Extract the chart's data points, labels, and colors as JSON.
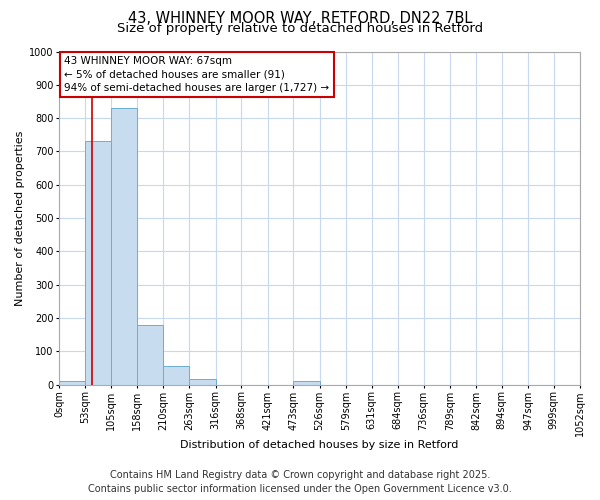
{
  "title_line1": "43, WHINNEY MOOR WAY, RETFORD, DN22 7BL",
  "title_line2": "Size of property relative to detached houses in Retford",
  "xlabel": "Distribution of detached houses by size in Retford",
  "ylabel": "Number of detached properties",
  "bin_edges": [
    0,
    53,
    105,
    158,
    210,
    263,
    316,
    368,
    421,
    473,
    526,
    579,
    631,
    684,
    736,
    789,
    842,
    894,
    947,
    999,
    1052
  ],
  "bin_labels": [
    "0sqm",
    "53sqm",
    "105sqm",
    "158sqm",
    "210sqm",
    "263sqm",
    "316sqm",
    "368sqm",
    "421sqm",
    "473sqm",
    "526sqm",
    "579sqm",
    "631sqm",
    "684sqm",
    "736sqm",
    "789sqm",
    "842sqm",
    "894sqm",
    "947sqm",
    "999sqm",
    "1052sqm"
  ],
  "counts": [
    10,
    730,
    830,
    180,
    55,
    18,
    0,
    0,
    0,
    10,
    0,
    0,
    0,
    0,
    0,
    0,
    0,
    0,
    0,
    0
  ],
  "bar_color": "#c8dcf0",
  "bar_edge_color": "#6baed6",
  "grid_color": "#c8d8f0",
  "background_color": "#ffffff",
  "plot_bg_color": "#ffffff",
  "property_size": 67,
  "red_line_color": "#cc0000",
  "annotation_line1": "43 WHINNEY MOOR WAY: 67sqm",
  "annotation_line2": "← 5% of detached houses are smaller (91)",
  "annotation_line3": "94% of semi-detached houses are larger (1,727) →",
  "annotation_box_color": "#ffffff",
  "annotation_border_color": "#cc0000",
  "ylim": [
    0,
    1000
  ],
  "yticks": [
    0,
    100,
    200,
    300,
    400,
    500,
    600,
    700,
    800,
    900,
    1000
  ],
  "footer_line1": "Contains HM Land Registry data © Crown copyright and database right 2025.",
  "footer_line2": "Contains public sector information licensed under the Open Government Licence v3.0.",
  "footer_fontsize": 7,
  "title_fontsize1": 10.5,
  "title_fontsize2": 9.5,
  "axis_label_fontsize": 8,
  "tick_fontsize": 7,
  "annotation_fontsize": 7.5
}
